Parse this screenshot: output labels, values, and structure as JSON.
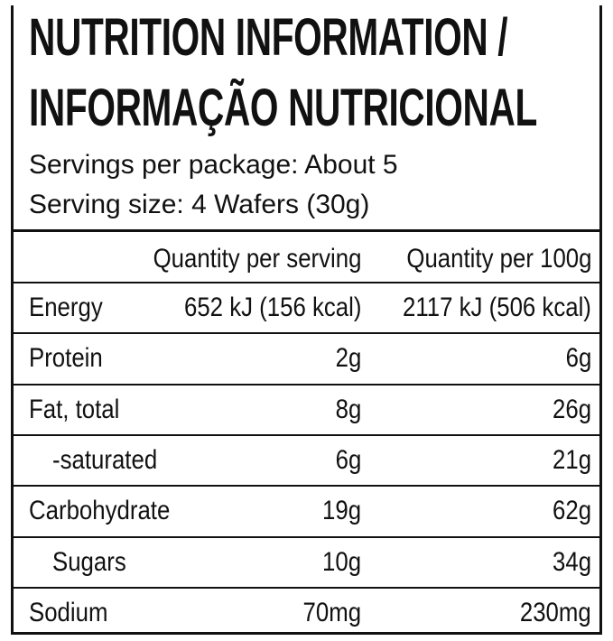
{
  "header": {
    "title": [
      "NUTRITION INFORMATION /",
      "INFORMAÇÃO NUTRICIONAL"
    ],
    "servings_per_package": "Servings per package: About 5",
    "serving_size": "Serving size: 4 Wafers (30g)"
  },
  "table": {
    "columns": [
      "Quantity per serving",
      "Quantity per 100g"
    ],
    "rows": [
      [
        "Energy",
        "652 kJ (156 kcal)",
        "2117 kJ (506 kcal)"
      ],
      [
        "Protein",
        "2g",
        "6g"
      ],
      [
        "Fat, total",
        "8g",
        "26g"
      ],
      [
        "-saturated",
        "6g",
        "21g"
      ],
      [
        "Carbohydrate",
        "19g",
        "62g"
      ],
      [
        "Sugars",
        "10g",
        "34g"
      ],
      [
        "Sodium",
        "70mg",
        "230mg"
      ]
    ]
  }
}
